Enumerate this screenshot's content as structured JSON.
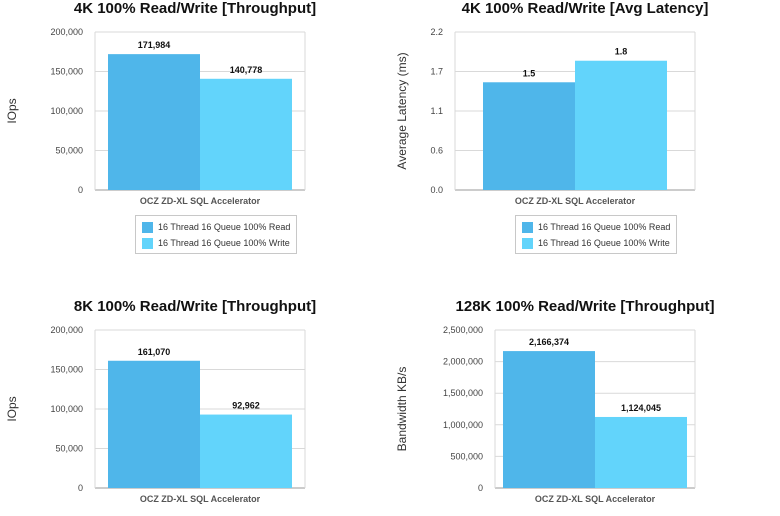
{
  "colors": {
    "read": "#4fb6ea",
    "write": "#62d4fb",
    "grid": "#d9d9d9",
    "axis": "#999999"
  },
  "chart_data": [
    {
      "type": "bar",
      "title": "4K 100% Read/Write [Throughput]",
      "xlabel": "",
      "ylabel": "IOps",
      "categories": [
        "OCZ ZD-XL SQL Accelerator"
      ],
      "series": [
        {
          "name": "16 Thread 16 Queue 100% Read",
          "values": [
            171984
          ],
          "label": "171,984"
        },
        {
          "name": "16 Thread 16 Queue 100% Write",
          "values": [
            140778
          ],
          "label": "140,778"
        }
      ],
      "ylim": [
        0,
        200000
      ],
      "yticks": [
        "200,000",
        "150,000",
        "100,000",
        "50,000",
        "0"
      ],
      "grid": true,
      "legend": "bottom"
    },
    {
      "type": "bar",
      "title": "4K 100% Read/Write [Avg Latency]",
      "xlabel": "",
      "ylabel": "Average Latency (ms)",
      "categories": [
        "OCZ ZD-XL SQL Accelerator"
      ],
      "series": [
        {
          "name": "16 Thread 16 Queue 100% Read",
          "values": [
            1.5
          ],
          "label": "1.5"
        },
        {
          "name": "16 Thread 16 Queue 100% Write",
          "values": [
            1.8
          ],
          "label": "1.8"
        }
      ],
      "ylim": [
        0,
        2.2
      ],
      "yticks": [
        "2.2",
        "1.7",
        "1.1",
        "0.6",
        "0.0"
      ],
      "grid": true,
      "legend": "bottom"
    },
    {
      "type": "bar",
      "title": "8K 100% Read/Write [Throughput]",
      "xlabel": "",
      "ylabel": "IOps",
      "categories": [
        "OCZ ZD-XL SQL Accelerator"
      ],
      "series": [
        {
          "values": [
            161070
          ],
          "label": "161,070"
        },
        {
          "values": [
            92962
          ],
          "label": "92,962"
        }
      ],
      "ylim": [
        0,
        200000
      ],
      "yticks": [
        "200,000",
        "150,000",
        "100,000",
        "50,000",
        "0"
      ],
      "grid": true
    },
    {
      "type": "bar",
      "title": "128K 100% Read/Write [Throughput]",
      "xlabel": "",
      "ylabel": "Bandwidth KB/s",
      "categories": [
        "OCZ ZD-XL SQL Accelerator"
      ],
      "series": [
        {
          "values": [
            2166374
          ],
          "label": "2,166,374"
        },
        {
          "values": [
            1124045
          ],
          "label": "1,124,045"
        }
      ],
      "ylim": [
        0,
        2500000
      ],
      "yticks": [
        "2,500,000",
        "2,000,000",
        "1,500,000",
        "1,000,000",
        "500,000",
        "0"
      ],
      "grid": true
    }
  ]
}
